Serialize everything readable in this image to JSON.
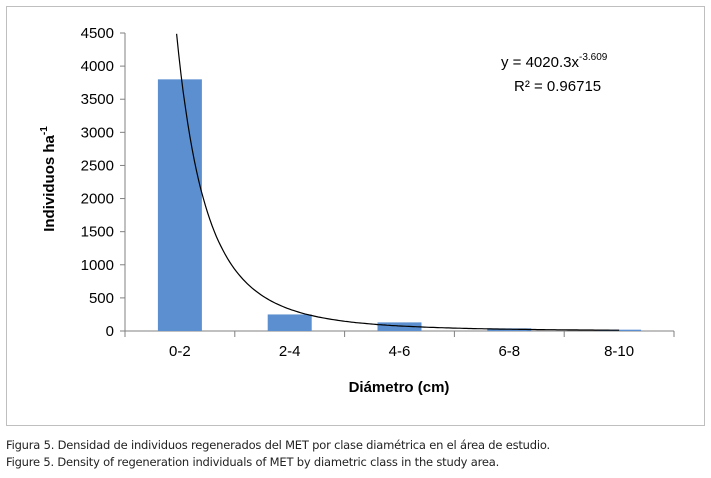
{
  "chart_data": {
    "type": "bar",
    "categories": [
      "0-2",
      "2-4",
      "4-6",
      "6-8",
      "8-10"
    ],
    "values": [
      3800,
      250,
      130,
      40,
      20
    ],
    "bar_color": "#5b8fcf",
    "xlabel": "Diámetro (cm)",
    "ylabel": {
      "main": "Individuos  ha",
      "sup": "-1"
    },
    "ylim": [
      0,
      4500
    ],
    "yticks": [
      "0",
      "500",
      "1000",
      "1500",
      "2000",
      "2500",
      "3000",
      "3500",
      "4000",
      "4500"
    ],
    "trendline": {
      "type": "power",
      "coefficient": 4020.3,
      "exponent": -3.609,
      "x_range": [
        0.97,
        5.0
      ],
      "color": "#000000",
      "equation": {
        "prefix": "y = 4020.3x",
        "sup": "-3.609"
      },
      "r2": "R² = 0.96715"
    }
  },
  "captions": {
    "es": "Figura 5. Densidad de individuos regenerados del MET por clase diamétrica en el área de estudio.",
    "en": "Figure 5. Density of regeneration individuals of MET by diametric class in the study area."
  }
}
